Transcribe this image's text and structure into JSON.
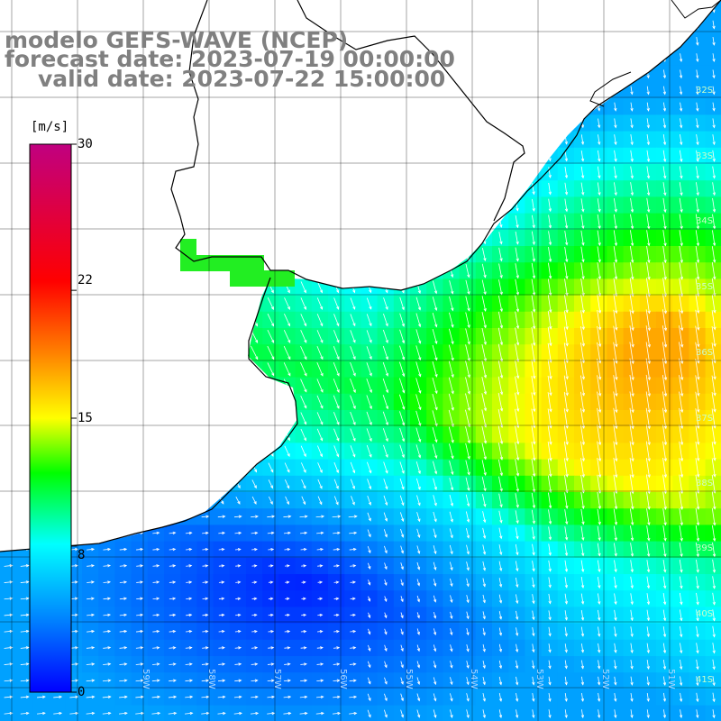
{
  "title": {
    "line1": "modelo GEFS-WAVE (NCEP)",
    "line2": "forecast date: 2023-07-19 00:00:00",
    "line3": "valid date: 2023-07-22 15:00:00"
  },
  "colorbar": {
    "unit": "[m/s]",
    "ticks": [
      "30",
      "22",
      "15",
      "8",
      "0"
    ],
    "tick_values": [
      30,
      22,
      15,
      8,
      0
    ],
    "min": 0,
    "max": 30,
    "stops": [
      "#0000ff",
      "#0080ff",
      "#00ffff",
      "#00ff00",
      "#ffff00",
      "#ff8000",
      "#ff0000",
      "#c00080"
    ]
  },
  "grid": {
    "lat_labels": [
      "32S",
      "33S",
      "34S",
      "35S",
      "36S",
      "37S",
      "38S",
      "39S",
      "40S",
      "41S"
    ],
    "lon_labels": [
      "59W",
      "58W",
      "57W",
      "56W",
      "55W",
      "54W",
      "53W",
      "52W",
      "51W"
    ]
  },
  "colors": {
    "land": "#ffffff",
    "coastline": "#000000",
    "gridline": "#000000",
    "arrow": "#ffffff",
    "title": "#808080"
  }
}
